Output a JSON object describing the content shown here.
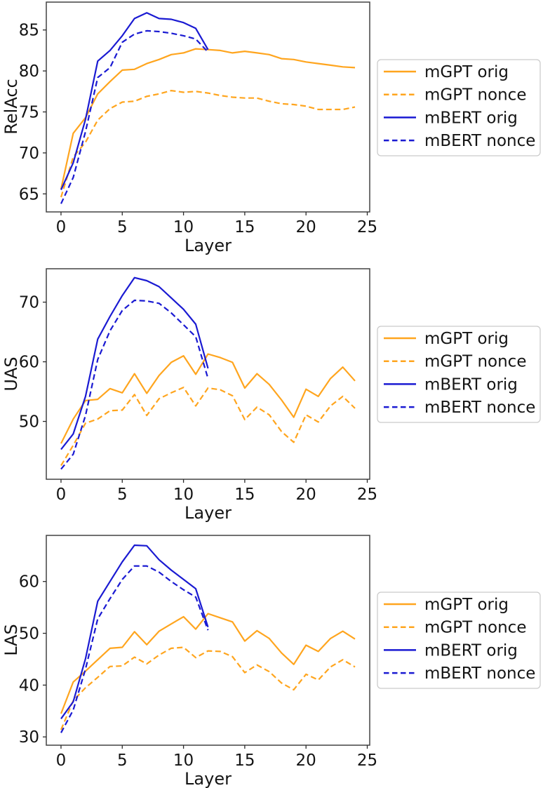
{
  "chart_data": [
    {
      "type": "line",
      "title": "",
      "xlabel": "Layer",
      "ylabel": "RelAcc",
      "xticks": [
        0,
        5,
        10,
        15,
        20,
        25
      ],
      "yticks": [
        65,
        70,
        75,
        80,
        85
      ],
      "xlim": [
        -1.2,
        25.2
      ],
      "ylim": [
        62.8,
        88.4
      ],
      "grid": false,
      "legend_position": "center-right-outside",
      "series": [
        {
          "name": "mGPT orig",
          "color": "#ffa51e",
          "style": "solid",
          "x": [
            0,
            1,
            2,
            3,
            4,
            5,
            6,
            7,
            8,
            9,
            10,
            11,
            12,
            13,
            14,
            15,
            16,
            17,
            18,
            19,
            20,
            21,
            22,
            23,
            24
          ],
          "values": [
            65.6,
            72.4,
            74.3,
            77.2,
            78.7,
            80.1,
            80.2,
            80.9,
            81.4,
            82.0,
            82.2,
            82.7,
            82.6,
            82.5,
            82.2,
            82.4,
            82.2,
            82.0,
            81.5,
            81.4,
            81.1,
            80.9,
            80.7,
            80.5,
            80.4
          ]
        },
        {
          "name": "mGPT nonce",
          "color": "#ffa51e",
          "style": "dashed",
          "x": [
            0,
            1,
            2,
            3,
            4,
            5,
            6,
            7,
            8,
            9,
            10,
            11,
            12,
            13,
            14,
            15,
            16,
            17,
            18,
            19,
            20,
            21,
            22,
            23,
            24
          ],
          "values": [
            64.6,
            69.5,
            71.3,
            74.0,
            75.4,
            76.2,
            76.3,
            76.9,
            77.2,
            77.6,
            77.4,
            77.5,
            77.3,
            77.0,
            76.8,
            76.7,
            76.7,
            76.3,
            76.0,
            75.9,
            75.7,
            75.3,
            75.3,
            75.3,
            75.6
          ]
        },
        {
          "name": "mBERT orig",
          "color": "#1a1ad2",
          "style": "solid",
          "x": [
            0,
            1,
            2,
            3,
            4,
            5,
            6,
            7,
            8,
            9,
            10,
            11,
            12
          ],
          "values": [
            65.5,
            68.8,
            74.1,
            81.2,
            82.5,
            84.3,
            86.4,
            87.1,
            86.4,
            86.3,
            85.9,
            85.2,
            82.6
          ]
        },
        {
          "name": "mBERT nonce",
          "color": "#1a1ad2",
          "style": "dashed",
          "x": [
            0,
            1,
            2,
            3,
            4,
            5,
            6,
            7,
            8,
            9,
            10,
            11,
            12
          ],
          "values": [
            63.8,
            67.0,
            72.6,
            79.2,
            80.4,
            83.5,
            84.5,
            84.9,
            84.8,
            84.6,
            84.3,
            83.9,
            82.3
          ]
        }
      ]
    },
    {
      "type": "line",
      "title": "",
      "xlabel": "Layer",
      "ylabel": "UAS",
      "xticks": [
        0,
        5,
        10,
        15,
        20,
        25
      ],
      "yticks": [
        50,
        60,
        70
      ],
      "xlim": [
        -1.2,
        25.2
      ],
      "ylim": [
        40.3,
        75.6
      ],
      "grid": false,
      "legend_position": "center-right-outside",
      "series": [
        {
          "name": "mGPT orig",
          "color": "#ffa51e",
          "style": "solid",
          "x": [
            0,
            1,
            2,
            3,
            4,
            5,
            6,
            7,
            8,
            9,
            10,
            11,
            12,
            13,
            14,
            15,
            16,
            17,
            18,
            19,
            20,
            21,
            22,
            23,
            24
          ],
          "values": [
            46.3,
            50.4,
            53.5,
            53.7,
            55.5,
            54.8,
            58.0,
            54.7,
            57.7,
            59.9,
            61.0,
            57.9,
            61.3,
            60.7,
            59.9,
            55.6,
            58.0,
            56.2,
            53.6,
            50.7,
            55.4,
            54.2,
            57.2,
            59.1,
            56.8
          ]
        },
        {
          "name": "mGPT nonce",
          "color": "#ffa51e",
          "style": "dashed",
          "x": [
            0,
            1,
            2,
            3,
            4,
            5,
            6,
            7,
            8,
            9,
            10,
            11,
            12,
            13,
            14,
            15,
            16,
            17,
            18,
            19,
            20,
            21,
            22,
            23,
            24
          ],
          "values": [
            42.6,
            46.0,
            49.7,
            50.4,
            51.8,
            51.9,
            54.5,
            51.0,
            53.8,
            54.8,
            55.7,
            52.6,
            55.6,
            55.3,
            54.3,
            50.3,
            52.4,
            51.1,
            48.3,
            46.5,
            51.1,
            49.9,
            52.6,
            54.2,
            52.2
          ]
        },
        {
          "name": "mBERT orig",
          "color": "#1a1ad2",
          "style": "solid",
          "x": [
            0,
            1,
            2,
            3,
            4,
            5,
            6,
            7,
            8,
            9,
            10,
            11,
            12
          ],
          "values": [
            45.3,
            47.9,
            54.2,
            63.8,
            67.6,
            71.1,
            74.1,
            73.6,
            72.6,
            70.7,
            68.8,
            66.3,
            58.9
          ]
        },
        {
          "name": "mBERT nonce",
          "color": "#1a1ad2",
          "style": "dashed",
          "x": [
            0,
            1,
            2,
            3,
            4,
            5,
            6,
            7,
            8,
            9,
            10,
            11,
            12
          ],
          "values": [
            42.0,
            44.5,
            51.0,
            60.4,
            65.2,
            68.6,
            70.3,
            70.2,
            69.8,
            68.2,
            66.2,
            64.2,
            57.2
          ]
        }
      ]
    },
    {
      "type": "line",
      "title": "",
      "xlabel": "Layer",
      "ylabel": "LAS",
      "xticks": [
        0,
        5,
        10,
        15,
        20,
        25
      ],
      "yticks": [
        30,
        40,
        50,
        60
      ],
      "xlim": [
        -1.2,
        25.2
      ],
      "ylim": [
        28.4,
        68.9
      ],
      "grid": false,
      "legend_position": "center-right-outside",
      "series": [
        {
          "name": "mGPT orig",
          "color": "#ffa51e",
          "style": "solid",
          "x": [
            0,
            1,
            2,
            3,
            4,
            5,
            6,
            7,
            8,
            9,
            10,
            11,
            12,
            13,
            14,
            15,
            16,
            17,
            18,
            19,
            20,
            21,
            22,
            23,
            24
          ],
          "values": [
            34.5,
            40.6,
            42.7,
            44.9,
            47.1,
            47.3,
            50.3,
            47.8,
            50.4,
            51.8,
            53.2,
            50.8,
            53.8,
            53.0,
            52.2,
            48.5,
            50.5,
            49.0,
            46.2,
            44.0,
            47.7,
            46.5,
            49.0,
            50.4,
            48.9
          ]
        },
        {
          "name": "mGPT nonce",
          "color": "#ffa51e",
          "style": "dashed",
          "x": [
            0,
            1,
            2,
            3,
            4,
            5,
            6,
            7,
            8,
            9,
            10,
            11,
            12,
            13,
            14,
            15,
            16,
            17,
            18,
            19,
            20,
            21,
            22,
            23,
            24
          ],
          "values": [
            31.4,
            37.0,
            39.5,
            41.5,
            43.6,
            43.7,
            45.4,
            44.1,
            45.8,
            47.1,
            47.3,
            45.3,
            46.6,
            46.5,
            45.5,
            42.4,
            43.9,
            42.6,
            40.4,
            39.1,
            42.1,
            41.0,
            43.5,
            44.9,
            43.5
          ]
        },
        {
          "name": "mBERT orig",
          "color": "#1a1ad2",
          "style": "solid",
          "x": [
            0,
            1,
            2,
            3,
            4,
            5,
            6,
            7,
            8,
            9,
            10,
            11,
            12
          ],
          "values": [
            33.5,
            36.8,
            45.1,
            56.2,
            60.0,
            63.8,
            67.0,
            66.9,
            64.2,
            62.2,
            60.4,
            58.6,
            51.2
          ]
        },
        {
          "name": "mBERT nonce",
          "color": "#1a1ad2",
          "style": "dashed",
          "x": [
            0,
            1,
            2,
            3,
            4,
            5,
            6,
            7,
            8,
            9,
            10,
            11,
            12
          ],
          "values": [
            30.8,
            35.2,
            43.1,
            52.8,
            56.7,
            60.4,
            63.0,
            63.0,
            61.8,
            60.0,
            58.4,
            57.0,
            50.6
          ]
        }
      ]
    }
  ]
}
